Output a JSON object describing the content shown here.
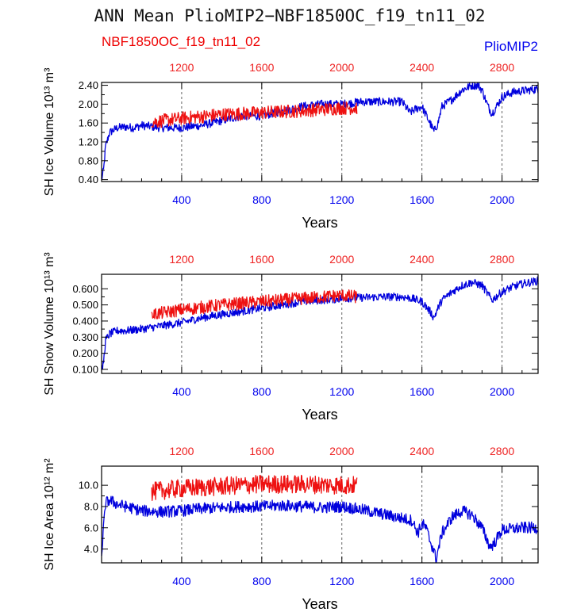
{
  "title": "ANN Mean PlioMIP2−NBF1850OC_f19_tn11_02",
  "legend": {
    "red": "NBF1850OC_f19_tn11_02",
    "blue": "PlioMIP2"
  },
  "colors": {
    "red": "#ee1111",
    "blue": "#0000dd"
  },
  "chart_data": [
    {
      "type": "line",
      "ylabel": "SH Ice Volume 10¹³ m³",
      "xlabel": "Years",
      "xlim": [
        0,
        2180
      ],
      "ylim": [
        0.36,
        2.46
      ],
      "yticks": [
        0.4,
        0.8,
        1.2,
        1.6,
        2.0,
        2.4
      ],
      "ytick_labels": [
        "0.40",
        "0.80",
        "1.20",
        "1.60",
        "2.00",
        "2.40"
      ],
      "series": [
        {
          "name": "PlioMIP2",
          "axis": "bottom",
          "x": [
            0,
            10,
            20,
            40,
            80,
            120,
            160,
            200,
            300,
            400,
            500,
            600,
            700,
            800,
            900,
            1000,
            1100,
            1200,
            1300,
            1400,
            1500,
            1540,
            1570,
            1600,
            1640,
            1660,
            1680,
            1700,
            1750,
            1800,
            1850,
            1880,
            1900,
            1930,
            1950,
            1980,
            2000,
            2050,
            2100,
            2180
          ],
          "y": [
            0.4,
            0.6,
            1.1,
            1.4,
            1.5,
            1.52,
            1.5,
            1.55,
            1.5,
            1.5,
            1.55,
            1.65,
            1.75,
            1.75,
            1.85,
            1.95,
            2.0,
            2.0,
            2.05,
            2.05,
            2.05,
            1.82,
            1.9,
            1.95,
            1.6,
            1.42,
            1.6,
            1.95,
            2.1,
            2.3,
            2.4,
            2.4,
            2.3,
            1.95,
            1.8,
            2.0,
            2.15,
            2.25,
            2.28,
            2.32
          ]
        },
        {
          "name": "NBF1850OC_f19_tn11_02",
          "axis": "top",
          "x": [
            1050,
            1200,
            1400,
            1600,
            1800,
            2000,
            2075
          ],
          "y": [
            1.62,
            1.7,
            1.78,
            1.82,
            1.86,
            1.92,
            1.92
          ]
        }
      ]
    },
    {
      "type": "line",
      "ylabel": "SH Snow Volume 10¹³ m³",
      "xlabel": "Years",
      "xlim": [
        0,
        2180
      ],
      "ylim": [
        0.075,
        0.69
      ],
      "yticks": [
        0.1,
        0.2,
        0.3,
        0.4,
        0.5,
        0.6
      ],
      "ytick_labels": [
        "0.100",
        "0.200",
        "0.300",
        "0.400",
        "0.500",
        "0.600"
      ],
      "series": [
        {
          "name": "PlioMIP2",
          "axis": "bottom",
          "x": [
            0,
            10,
            20,
            40,
            80,
            120,
            200,
            300,
            400,
            500,
            600,
            700,
            800,
            900,
            1000,
            1100,
            1200,
            1300,
            1400,
            1500,
            1550,
            1600,
            1640,
            1660,
            1680,
            1700,
            1750,
            1800,
            1850,
            1900,
            1950,
            2000,
            2050,
            2100,
            2180
          ],
          "y": [
            0.08,
            0.15,
            0.28,
            0.32,
            0.34,
            0.34,
            0.35,
            0.37,
            0.39,
            0.42,
            0.44,
            0.46,
            0.48,
            0.5,
            0.52,
            0.53,
            0.54,
            0.545,
            0.55,
            0.55,
            0.54,
            0.52,
            0.46,
            0.42,
            0.48,
            0.53,
            0.58,
            0.62,
            0.64,
            0.62,
            0.53,
            0.58,
            0.61,
            0.63,
            0.65
          ]
        },
        {
          "name": "NBF1850OC_f19_tn11_02",
          "axis": "top",
          "x": [
            1050,
            1200,
            1400,
            1600,
            1800,
            2000,
            2075
          ],
          "y": [
            0.44,
            0.47,
            0.5,
            0.52,
            0.54,
            0.56,
            0.55
          ]
        }
      ]
    },
    {
      "type": "line",
      "ylabel": "SH Ice Area 10¹² m²",
      "xlabel": "Years",
      "xlim": [
        0,
        2180
      ],
      "ylim": [
        2.7,
        11.8
      ],
      "yticks": [
        4.0,
        6.0,
        8.0,
        10.0
      ],
      "ytick_labels": [
        "4.0",
        "6.0",
        "8.0",
        "10.0"
      ],
      "series": [
        {
          "name": "PlioMIP2",
          "axis": "bottom",
          "x": [
            0,
            10,
            20,
            40,
            80,
            120,
            200,
            300,
            400,
            500,
            600,
            700,
            800,
            900,
            1000,
            1100,
            1200,
            1300,
            1400,
            1500,
            1550,
            1580,
            1600,
            1620,
            1640,
            1660,
            1670,
            1700,
            1750,
            1800,
            1850,
            1900,
            1940,
            1960,
            2000,
            2050,
            2100,
            2180
          ],
          "y": [
            3.5,
            6.0,
            8.3,
            8.6,
            8.2,
            8.0,
            7.6,
            7.5,
            7.6,
            7.8,
            7.9,
            8.0,
            8.0,
            8.1,
            8.0,
            7.9,
            8.0,
            7.7,
            7.3,
            6.9,
            6.7,
            5.5,
            6.4,
            6.0,
            4.8,
            3.8,
            3.0,
            5.5,
            7.0,
            7.6,
            7.2,
            6.0,
            4.2,
            4.5,
            5.8,
            5.9,
            6.0,
            6.0
          ]
        },
        {
          "name": "NBF1850OC_f19_tn11_02",
          "axis": "top",
          "x": [
            1050,
            1200,
            1400,
            1600,
            1800,
            2000,
            2075
          ],
          "y": [
            9.4,
            9.7,
            9.9,
            10.1,
            10.1,
            10.0,
            10.0
          ]
        }
      ]
    }
  ],
  "bottom_axis": {
    "ticks": [
      400,
      800,
      1200,
      1600,
      2000
    ],
    "labels": [
      "400",
      "800",
      "1200",
      "1600",
      "2000"
    ]
  },
  "top_axis": {
    "ticks": [
      1200,
      1600,
      2000,
      2400,
      2800
    ],
    "labels": [
      "1200",
      "1600",
      "2000",
      "2400",
      "2800"
    ],
    "offset": 800
  }
}
